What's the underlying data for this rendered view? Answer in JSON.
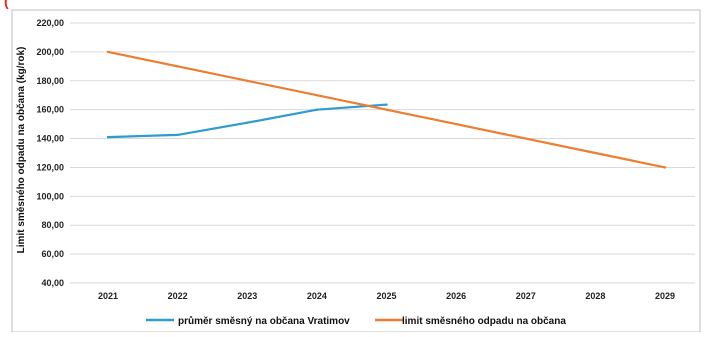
{
  "header_fragment": "(",
  "colors": {
    "header": "#e8231e",
    "series_1": "#2e9ccf",
    "series_2": "#ed7d31",
    "grid": "#d9d9d9",
    "border": "#bfbfbf"
  },
  "chart_data": {
    "type": "line",
    "x": [
      "2021",
      "2022",
      "2023",
      "2024",
      "2025",
      "2026",
      "2027",
      "2028",
      "2029"
    ],
    "ylabel": "Limit směsného odpadu na občana (kg/rok)",
    "xlabel": "",
    "ylim": [
      40,
      220
    ],
    "yticks": [
      "40,00",
      "60,00",
      "80,00",
      "100,00",
      "120,00",
      "140,00",
      "160,00",
      "180,00",
      "200,00",
      "220,00"
    ],
    "grid": true,
    "legend_position": "bottom",
    "series": [
      {
        "name": "průměr směsný na občana Vratimov",
        "values": [
          141,
          142.5,
          151,
          160,
          163.5,
          null,
          null,
          null,
          null
        ]
      },
      {
        "name": "limit směsného odpadu na občana",
        "values": [
          200,
          190,
          180,
          170,
          160,
          150,
          140,
          130,
          120
        ]
      }
    ]
  }
}
